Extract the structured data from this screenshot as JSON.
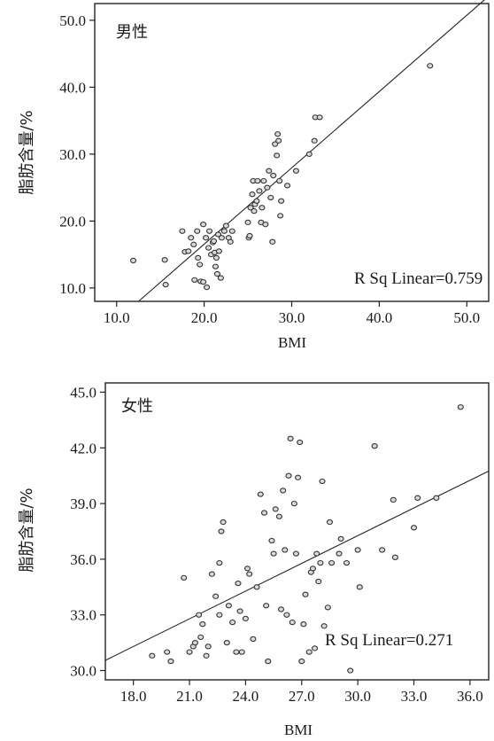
{
  "chart_data": [
    {
      "type": "scatter",
      "title": "男性",
      "xlabel": "BMI",
      "ylabel": "脂肪含量/%",
      "xlim": [
        7.5,
        52.5
      ],
      "ylim": [
        8.0,
        52.5
      ],
      "x_ticks": [
        "10.0",
        "20.0",
        "30.0",
        "40.0",
        "50.0"
      ],
      "y_ticks": [
        "10.0",
        "20.0",
        "30.0",
        "40.0",
        "50.0"
      ],
      "annotation": "R Sq Linear=0.759",
      "fit_line": {
        "x": [
          12.5,
          52.5
        ],
        "y": [
          8.0,
          53.6
        ]
      },
      "points": [
        [
          11.9,
          14.1
        ],
        [
          15.5,
          14.2
        ],
        [
          15.6,
          10.5
        ],
        [
          17.5,
          18.5
        ],
        [
          17.8,
          15.4
        ],
        [
          18.2,
          15.5
        ],
        [
          18.5,
          17.5
        ],
        [
          18.8,
          16.5
        ],
        [
          18.9,
          11.2
        ],
        [
          19.2,
          18.5
        ],
        [
          19.3,
          14.5
        ],
        [
          19.5,
          13.5
        ],
        [
          19.6,
          11.0
        ],
        [
          19.9,
          10.9
        ],
        [
          19.9,
          19.5
        ],
        [
          20.2,
          17.5
        ],
        [
          20.3,
          10.1
        ],
        [
          20.5,
          16.0
        ],
        [
          20.6,
          18.5
        ],
        [
          20.8,
          15.0
        ],
        [
          21.0,
          16.8
        ],
        [
          21.1,
          17.0
        ],
        [
          21.2,
          15.3
        ],
        [
          21.3,
          13.2
        ],
        [
          21.4,
          14.5
        ],
        [
          21.5,
          12.1
        ],
        [
          21.6,
          18.0
        ],
        [
          21.7,
          15.5
        ],
        [
          21.9,
          11.5
        ],
        [
          22.0,
          17.5
        ],
        [
          22.3,
          18.5
        ],
        [
          22.5,
          19.3
        ],
        [
          22.8,
          17.5
        ],
        [
          23.0,
          16.9
        ],
        [
          23.2,
          18.5
        ],
        [
          25.0,
          19.8
        ],
        [
          25.1,
          17.5
        ],
        [
          25.2,
          17.8
        ],
        [
          25.3,
          22.0
        ],
        [
          25.5,
          24.0
        ],
        [
          25.6,
          26.0
        ],
        [
          25.7,
          21.5
        ],
        [
          25.8,
          22.5
        ],
        [
          26.0,
          23.0
        ],
        [
          26.1,
          26.0
        ],
        [
          26.3,
          24.5
        ],
        [
          26.5,
          19.8
        ],
        [
          26.6,
          22.0
        ],
        [
          26.8,
          26.0
        ],
        [
          27.0,
          19.5
        ],
        [
          27.2,
          25.0
        ],
        [
          27.4,
          27.5
        ],
        [
          27.6,
          23.5
        ],
        [
          27.8,
          16.9
        ],
        [
          27.9,
          26.8
        ],
        [
          28.1,
          31.5
        ],
        [
          28.3,
          29.8
        ],
        [
          28.4,
          33.0
        ],
        [
          28.5,
          32.0
        ],
        [
          28.6,
          26.0
        ],
        [
          28.7,
          20.8
        ],
        [
          28.8,
          23.0
        ],
        [
          29.5,
          25.3
        ],
        [
          30.5,
          27.5
        ],
        [
          32.0,
          30.0
        ],
        [
          32.6,
          32.0
        ],
        [
          32.7,
          35.5
        ],
        [
          33.2,
          35.5
        ],
        [
          45.8,
          43.2
        ]
      ]
    },
    {
      "type": "scatter",
      "title": "女性",
      "xlabel": "BMI",
      "ylabel": "脂肪含量/%",
      "xlim": [
        16.5,
        37.0
      ],
      "ylim": [
        29.5,
        45.5
      ],
      "x_ticks": [
        "18.0",
        "21.0",
        "24.0",
        "27.0",
        "30.0",
        "33.0",
        "36.0"
      ],
      "y_ticks": [
        "30.0",
        "33.0",
        "36.0",
        "39.0",
        "42.0",
        "45.0"
      ],
      "annotation": "R Sq Linear=0.271",
      "fit_line": {
        "x": [
          16.5,
          37.0
        ],
        "y": [
          30.55,
          40.75
        ]
      },
      "points": [
        [
          19.0,
          30.8
        ],
        [
          19.8,
          31.0
        ],
        [
          20.0,
          30.5
        ],
        [
          20.7,
          35.0
        ],
        [
          21.0,
          31.0
        ],
        [
          21.2,
          31.3
        ],
        [
          21.3,
          31.5
        ],
        [
          21.5,
          33.0
        ],
        [
          21.6,
          31.8
        ],
        [
          21.7,
          32.5
        ],
        [
          21.9,
          30.8
        ],
        [
          22.0,
          31.3
        ],
        [
          22.2,
          35.2
        ],
        [
          22.4,
          34.0
        ],
        [
          22.6,
          33.0
        ],
        [
          22.6,
          35.8
        ],
        [
          22.7,
          37.5
        ],
        [
          22.8,
          38.0
        ],
        [
          23.0,
          31.5
        ],
        [
          23.1,
          33.5
        ],
        [
          23.3,
          32.6
        ],
        [
          23.5,
          31.0
        ],
        [
          23.6,
          34.7
        ],
        [
          23.7,
          33.2
        ],
        [
          23.8,
          31.0
        ],
        [
          24.0,
          32.8
        ],
        [
          24.1,
          35.5
        ],
        [
          24.2,
          35.2
        ],
        [
          24.4,
          31.7
        ],
        [
          24.6,
          34.5
        ],
        [
          24.8,
          39.5
        ],
        [
          25.0,
          38.5
        ],
        [
          25.1,
          33.5
        ],
        [
          25.2,
          30.5
        ],
        [
          25.4,
          37.0
        ],
        [
          25.5,
          36.3
        ],
        [
          25.6,
          38.7
        ],
        [
          25.8,
          38.3
        ],
        [
          25.9,
          33.3
        ],
        [
          26.0,
          39.7
        ],
        [
          26.1,
          36.5
        ],
        [
          26.2,
          33.0
        ],
        [
          26.3,
          40.5
        ],
        [
          26.4,
          42.5
        ],
        [
          26.5,
          32.6
        ],
        [
          26.6,
          39.0
        ],
        [
          26.7,
          36.3
        ],
        [
          26.8,
          40.4
        ],
        [
          26.9,
          42.3
        ],
        [
          27.0,
          30.5
        ],
        [
          27.1,
          32.5
        ],
        [
          27.2,
          34.1
        ],
        [
          27.4,
          31.0
        ],
        [
          27.5,
          35.3
        ],
        [
          27.6,
          35.5
        ],
        [
          27.7,
          31.2
        ],
        [
          27.8,
          36.3
        ],
        [
          27.9,
          34.8
        ],
        [
          28.0,
          35.8
        ],
        [
          28.1,
          40.2
        ],
        [
          28.2,
          32.4
        ],
        [
          28.4,
          33.4
        ],
        [
          28.5,
          38.0
        ],
        [
          28.6,
          35.8
        ],
        [
          29.0,
          36.3
        ],
        [
          29.1,
          37.1
        ],
        [
          29.4,
          35.8
        ],
        [
          29.6,
          30.0
        ],
        [
          30.0,
          36.5
        ],
        [
          30.1,
          34.5
        ],
        [
          30.9,
          42.1
        ],
        [
          31.3,
          36.5
        ],
        [
          31.9,
          39.2
        ],
        [
          32.0,
          36.1
        ],
        [
          33.0,
          37.7
        ],
        [
          33.2,
          39.3
        ],
        [
          34.2,
          39.3
        ],
        [
          35.5,
          44.2
        ]
      ]
    }
  ]
}
